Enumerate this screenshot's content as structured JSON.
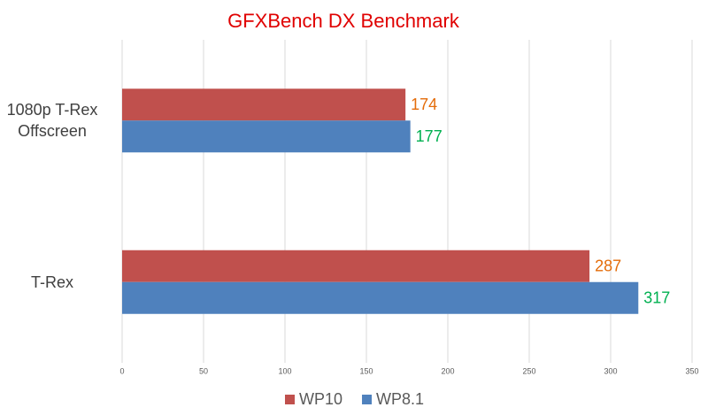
{
  "chart_data": {
    "type": "hbar",
    "title": "GFXBench DX Benchmark",
    "categories": [
      "1080p T-Rex Offscreen",
      "T-Rex"
    ],
    "series": [
      {
        "name": "WP10",
        "color": "#c0504d",
        "label_color": "#e46c0a",
        "values": [
          174,
          287
        ]
      },
      {
        "name": "WP8.1",
        "color": "#4f81bd",
        "label_color": "#00b050",
        "values": [
          177,
          317
        ]
      }
    ],
    "xlim": [
      0,
      350
    ],
    "xticks": [
      0,
      50,
      100,
      150,
      200,
      250,
      300,
      350
    ],
    "grid": true,
    "legend": "bottom"
  }
}
